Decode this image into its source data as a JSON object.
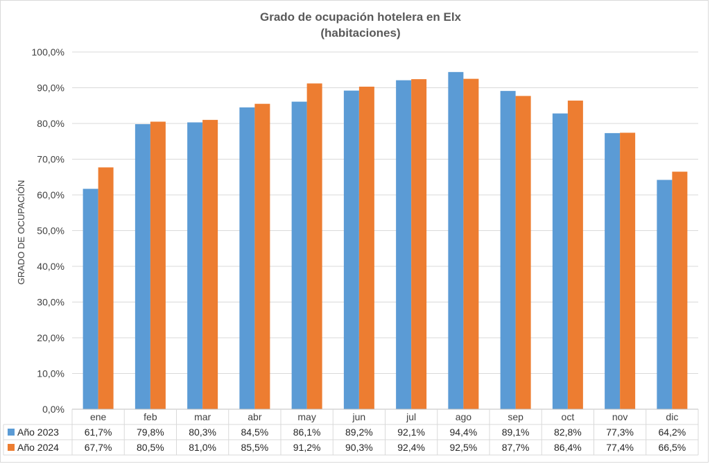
{
  "chart_data": {
    "type": "bar",
    "title": "Grado de ocupación hotelera en Elx",
    "subtitle": "(habitaciones)",
    "ylabel": "GRADO DE OCUPACIÓN",
    "xlabel": "",
    "ylim": [
      0,
      100
    ],
    "yticks": [
      "0,0%",
      "10,0%",
      "20,0%",
      "30,0%",
      "40,0%",
      "50,0%",
      "60,0%",
      "70,0%",
      "80,0%",
      "90,0%",
      "100,0%"
    ],
    "grid": true,
    "legend": "data-table",
    "categories": [
      "ene",
      "feb",
      "mar",
      "abr",
      "may",
      "jun",
      "jul",
      "ago",
      "sep",
      "oct",
      "nov",
      "dic"
    ],
    "series": [
      {
        "name": "Año 2023",
        "color": "#5b9bd5",
        "values": [
          61.7,
          79.8,
          80.3,
          84.5,
          86.1,
          89.2,
          92.1,
          94.4,
          89.1,
          82.8,
          77.3,
          64.2
        ],
        "labels": [
          "61,7%",
          "79,8%",
          "80,3%",
          "84,5%",
          "86,1%",
          "89,2%",
          "92,1%",
          "94,4%",
          "89,1%",
          "82,8%",
          "77,3%",
          "64,2%"
        ]
      },
      {
        "name": "Año 2024",
        "color": "#ed7d31",
        "values": [
          67.7,
          80.5,
          81.0,
          85.5,
          91.2,
          90.3,
          92.4,
          92.5,
          87.7,
          86.4,
          77.4,
          66.5
        ],
        "labels": [
          "67,7%",
          "80,5%",
          "81,0%",
          "85,5%",
          "91,2%",
          "90,3%",
          "92,4%",
          "92,5%",
          "87,7%",
          "86,4%",
          "77,4%",
          "66,5%"
        ]
      }
    ]
  }
}
